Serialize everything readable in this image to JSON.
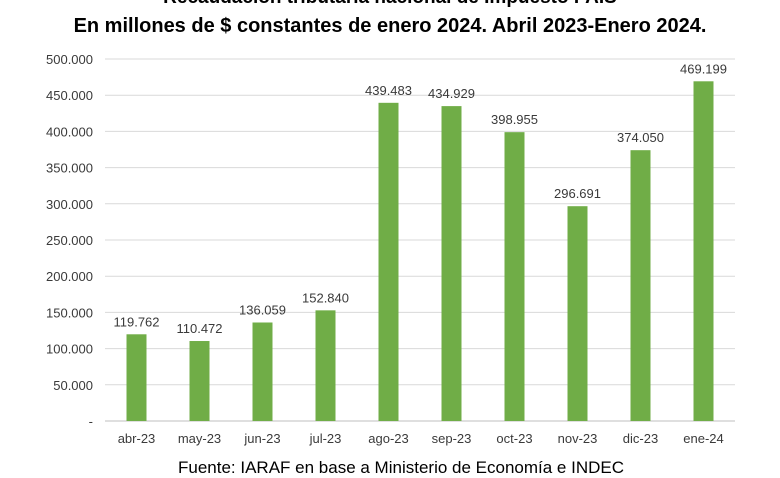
{
  "chart_data": {
    "type": "bar",
    "title": "Recaudación tributaria nacional de Impuesto PAIS",
    "subtitle": "En millones de $ constantes de enero 2024. Abril 2023-Enero 2024.",
    "categories": [
      "abr-23",
      "may-23",
      "jun-23",
      "jul-23",
      "ago-23",
      "sep-23",
      "oct-23",
      "nov-23",
      "dic-23",
      "ene-24"
    ],
    "values": [
      119762,
      110472,
      136059,
      152840,
      439483,
      434929,
      398955,
      296691,
      374050,
      469199
    ],
    "value_labels": [
      "119.762",
      "110.472",
      "136.059",
      "152.840",
      "439.483",
      "434.929",
      "398.955",
      "296.691",
      "374.050",
      "469.199"
    ],
    "ylim": [
      0,
      500000
    ],
    "yticks": [
      0,
      50000,
      100000,
      150000,
      200000,
      250000,
      300000,
      350000,
      400000,
      450000,
      500000
    ],
    "ytick_labels": [
      "-",
      "50.000",
      "100.000",
      "150.000",
      "200.000",
      "250.000",
      "300.000",
      "350.000",
      "400.000",
      "450.000",
      "500.000"
    ],
    "xlabel": "",
    "ylabel": "",
    "grid": true,
    "bar_color": "#70ad47",
    "grid_color": "#d9d9d9"
  },
  "source": "Fuente: IARAF en base a Ministerio de Economía e INDEC"
}
